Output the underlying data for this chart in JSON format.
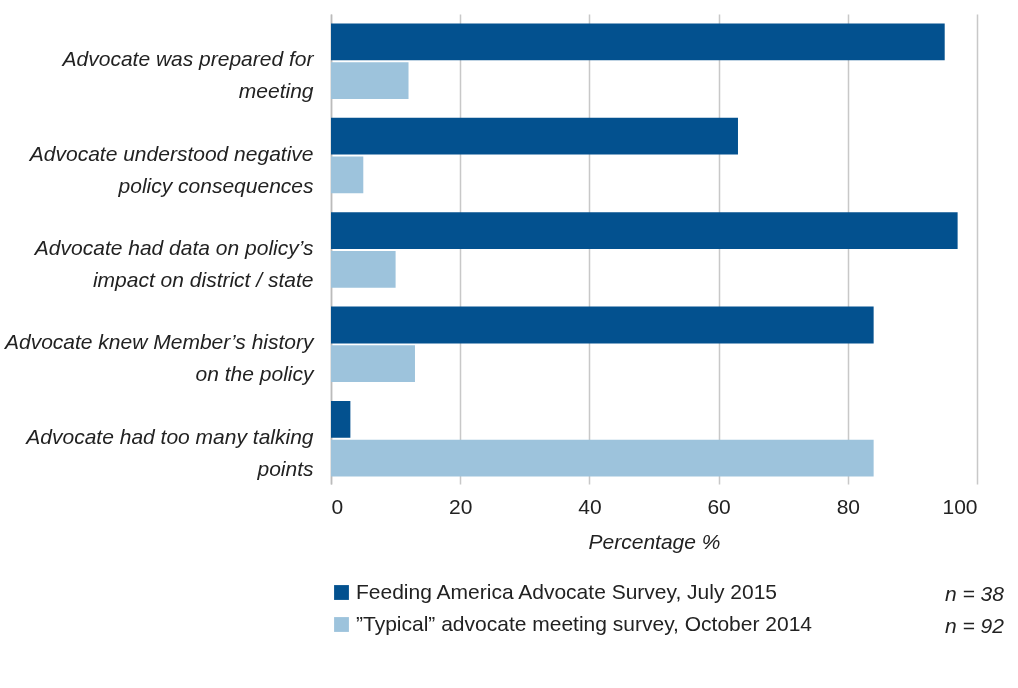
{
  "chart_data": {
    "type": "bar",
    "orientation": "horizontal",
    "xlabel": "Percentage %",
    "categories": [
      "Advocate was prepared for meeting",
      "Advocate understood negative policy consequences",
      "Advocate had data on policy’s impact on district / state",
      "Advocate knew Member’s history on the policy",
      "Advocate had too many talking points"
    ],
    "series": [
      {
        "name": "Feeding America Advocate Survey, July 2015",
        "color": "#03518f",
        "values": [
          95,
          63,
          97,
          84,
          3
        ]
      },
      {
        "name": "”Typical” advocate meeting survey, October 2014",
        "color": "#9dc3dc",
        "values": [
          12,
          5,
          10,
          13,
          84
        ]
      }
    ],
    "xlim": [
      0,
      100
    ],
    "xticks": [
      0,
      20,
      40,
      60,
      80,
      100
    ],
    "grid": "x",
    "legend": "bottom",
    "annotations": [
      "n = 38",
      "n = 92"
    ]
  }
}
